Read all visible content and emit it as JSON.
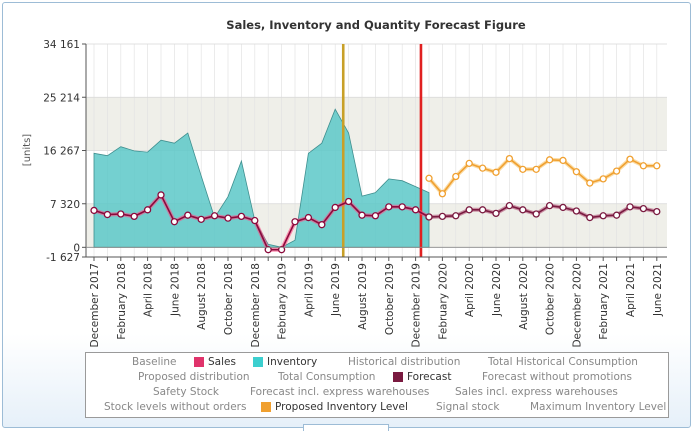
{
  "chart_data": {
    "type": "area+line",
    "title": "Sales, Inventory and Quantity Forecast Figure",
    "ylabel": "[units]",
    "ylim": [
      -1627,
      34161
    ],
    "yticks": [
      {
        "value": 34161,
        "label": "34 161"
      },
      {
        "value": 25214,
        "label": "25 214"
      },
      {
        "value": 16267,
        "label": "16 267"
      },
      {
        "value": 7320,
        "label": "7 320"
      },
      {
        "value": 0,
        "label": "0"
      },
      {
        "value": -1627,
        "label": "-1 627"
      }
    ],
    "x_months": [
      "2017-12",
      "2018-01",
      "2018-02",
      "2018-03",
      "2018-04",
      "2018-05",
      "2018-06",
      "2018-07",
      "2018-08",
      "2018-09",
      "2018-10",
      "2018-11",
      "2018-12",
      "2019-01",
      "2019-02",
      "2019-03",
      "2019-04",
      "2019-05",
      "2019-06",
      "2019-07",
      "2019-08",
      "2019-09",
      "2019-10",
      "2019-11",
      "2019-12",
      "2020-01",
      "2020-02",
      "2020-03",
      "2020-04",
      "2020-05",
      "2020-06",
      "2020-07",
      "2020-08",
      "2020-09",
      "2020-10",
      "2020-11",
      "2020-12",
      "2021-01",
      "2021-02",
      "2021-03",
      "2021-04",
      "2021-05",
      "2021-06"
    ],
    "x_tick_labels": [
      {
        "index": 0,
        "label": "December 2017"
      },
      {
        "index": 2,
        "label": "February 2018"
      },
      {
        "index": 4,
        "label": "April 2018"
      },
      {
        "index": 6,
        "label": "June 2018"
      },
      {
        "index": 8,
        "label": "August 2018"
      },
      {
        "index": 10,
        "label": "October 2018"
      },
      {
        "index": 12,
        "label": "December 2018"
      },
      {
        "index": 14,
        "label": "February 2019"
      },
      {
        "index": 16,
        "label": "April 2019"
      },
      {
        "index": 18,
        "label": "June 2019"
      },
      {
        "index": 20,
        "label": "August 2019"
      },
      {
        "index": 22,
        "label": "October 2019"
      },
      {
        "index": 24,
        "label": "December 2019"
      },
      {
        "index": 26,
        "label": "February 2020"
      },
      {
        "index": 28,
        "label": "April 2020"
      },
      {
        "index": 30,
        "label": "June 2020"
      },
      {
        "index": 32,
        "label": "August 2020"
      },
      {
        "index": 34,
        "label": "October 2020"
      },
      {
        "index": 36,
        "label": "December 2020"
      },
      {
        "index": 38,
        "label": "February 2021"
      },
      {
        "index": 40,
        "label": "April 2021"
      },
      {
        "index": 42,
        "label": "June 2021"
      }
    ],
    "series": [
      {
        "name": "Inventory",
        "type": "area",
        "color": "#5cc8c8",
        "x_index_range": [
          0,
          25
        ],
        "values": [
          15800,
          15400,
          16900,
          16200,
          16000,
          18000,
          17500,
          19200,
          12000,
          5000,
          8500,
          14500,
          4500,
          500,
          0,
          1200,
          15800,
          17500,
          23200,
          19200,
          8600,
          9200,
          11500,
          11200,
          10200,
          9200
        ]
      },
      {
        "name": "Sales",
        "type": "line",
        "color": "#8b0a3c",
        "x_index_range": [
          0,
          25
        ],
        "values": [
          6200,
          5500,
          5600,
          5200,
          6300,
          8800,
          4300,
          5400,
          4700,
          5300,
          4900,
          5200,
          4500,
          -400,
          -400,
          4300,
          5000,
          3800,
          6700,
          7700,
          5400,
          5300,
          6800,
          6800,
          6300,
          5100
        ]
      },
      {
        "name": "Forecast",
        "type": "line",
        "color": "#7a1a40",
        "x_index_range": [
          25,
          42
        ],
        "values": [
          5100,
          5200,
          5300,
          6300,
          6300,
          5700,
          7000,
          6300,
          5600,
          7000,
          6700,
          6100,
          5000,
          5300,
          5400,
          6800,
          6500,
          6000
        ]
      },
      {
        "name": "Proposed Inventory Level",
        "type": "line",
        "color": "#f0a030",
        "x_index_range": [
          25,
          42
        ],
        "values": [
          11600,
          9000,
          11900,
          14100,
          13300,
          12600,
          14900,
          13100,
          13100,
          14700,
          14600,
          12700,
          10800,
          11500,
          12800,
          14800,
          13700,
          13700
        ]
      }
    ],
    "markers": [
      {
        "name": "Signal stock",
        "x_index": 18.6,
        "color": "#c8a028"
      },
      {
        "name": "Today",
        "x_index": 24.4,
        "color": "#e02020"
      }
    ],
    "legend": [
      {
        "label": "Baseline",
        "active": false
      },
      {
        "label": "Sales",
        "active": true,
        "color": "#e0336b"
      },
      {
        "label": "Inventory",
        "active": true,
        "color": "#3ccfcf"
      },
      {
        "label": "Historical distribution",
        "active": false
      },
      {
        "label": "Total Historical Consumption",
        "active": false
      },
      {
        "label": "Proposed distribution",
        "active": false
      },
      {
        "label": "Total Consumption",
        "active": false
      },
      {
        "label": "Forecast",
        "active": true,
        "color": "#7a1a40"
      },
      {
        "label": "Forecast without promotions",
        "active": false
      },
      {
        "label": "Safety Stock",
        "active": false
      },
      {
        "label": "Forecast incl. express warehouses",
        "active": false
      },
      {
        "label": "Sales incl. express warehouses",
        "active": false
      },
      {
        "label": "Stock levels without orders",
        "active": false
      },
      {
        "label": "Proposed Inventory Level",
        "active": true,
        "color": "#f0a030"
      },
      {
        "label": "Signal stock",
        "active": false
      },
      {
        "label": "Maximum Inventory Level",
        "active": false
      }
    ]
  }
}
